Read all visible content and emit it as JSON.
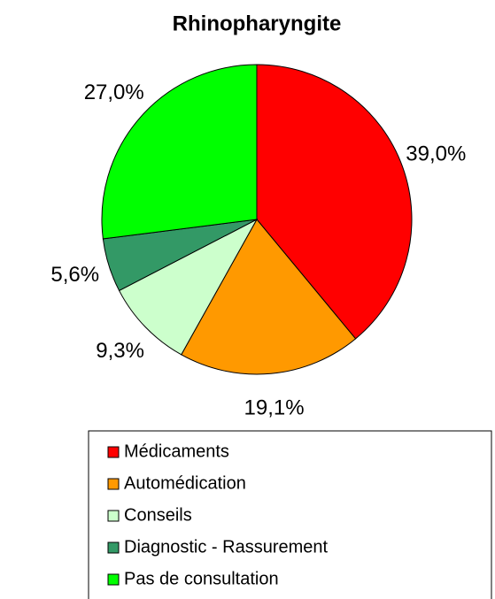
{
  "chart_data": {
    "type": "pie",
    "title": "Rhinopharyngite",
    "categories": [
      "Médicaments",
      "Automédication",
      "Conseils",
      "Diagnostic - Rassurement",
      "Pas de consultation"
    ],
    "values": [
      39.0,
      19.1,
      9.3,
      5.6,
      27.0
    ],
    "value_labels": [
      "39,0%",
      "19,1%",
      "9,3%",
      "5,6%",
      "27,0%"
    ],
    "colors": [
      "#ff0000",
      "#ff9900",
      "#ccffcc",
      "#339966",
      "#00ff00"
    ],
    "legend": "bottom"
  }
}
